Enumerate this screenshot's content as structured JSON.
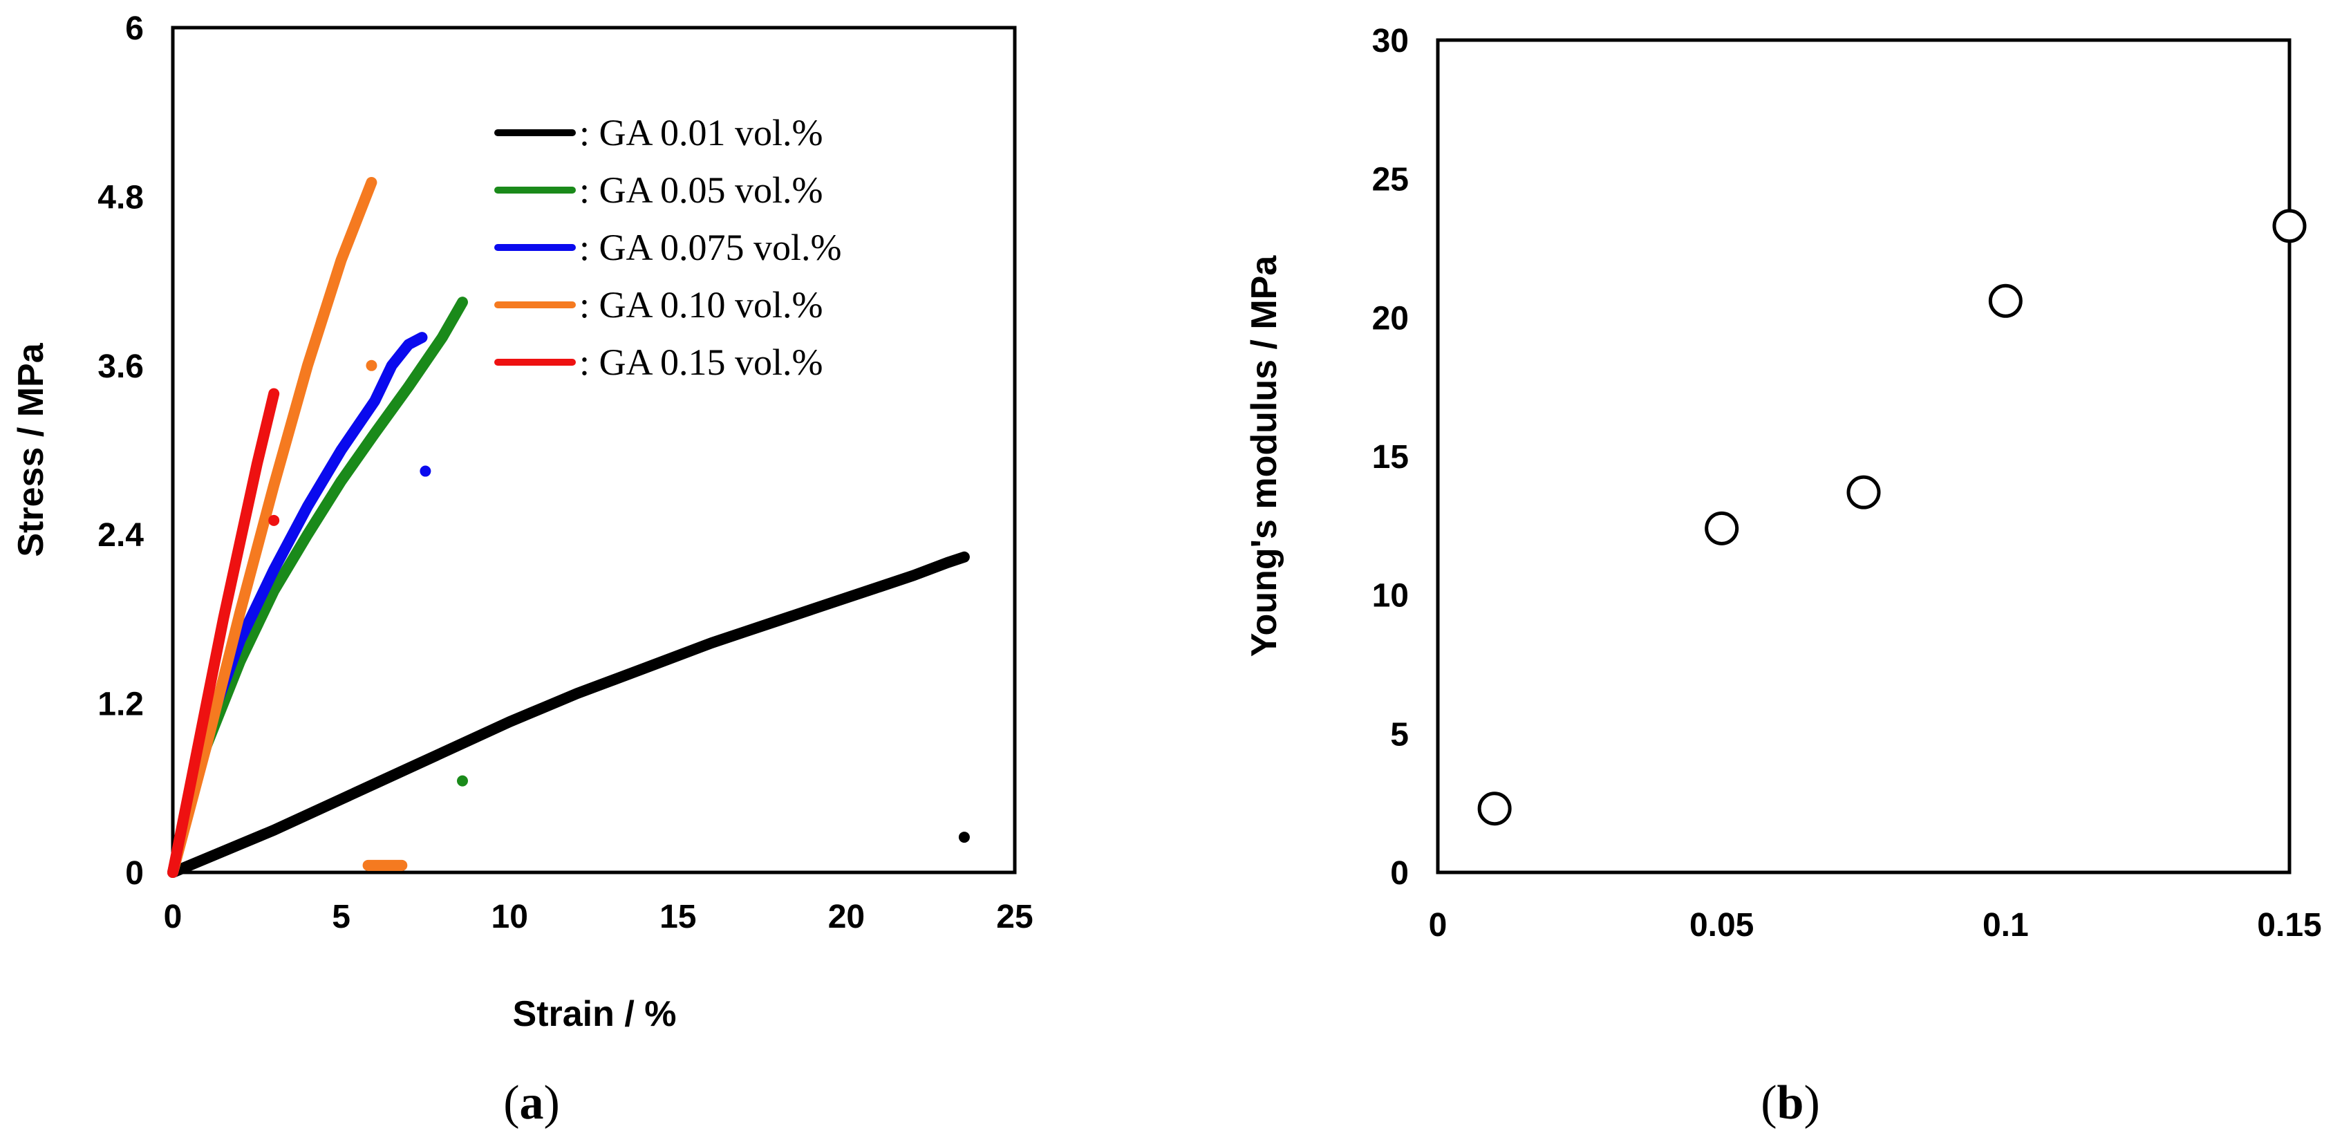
{
  "chart_data": [
    {
      "panel": "(a)",
      "type": "line",
      "xlabel": "Strain / %",
      "ylabel": "Stress / MPa",
      "xlim": [
        0,
        25
      ],
      "ylim": [
        0,
        6
      ],
      "xticks": [
        0,
        5,
        10,
        15,
        20,
        25
      ],
      "yticks": [
        0,
        1.2,
        2.4,
        3.6,
        4.8,
        6
      ],
      "ytick_labels": [
        "0",
        "1.2",
        "2.4",
        "3.6",
        "4.8",
        "6"
      ],
      "grid": false,
      "legend_position": "top-right",
      "series": [
        {
          "name": ": GA 0.01 vol.%",
          "color": "#000000",
          "x": [
            0,
            1,
            2,
            3,
            4,
            5,
            6,
            7,
            8,
            9,
            10,
            11,
            12,
            13,
            14,
            15,
            16,
            17,
            18,
            19,
            20,
            21,
            22,
            23,
            23.5
          ],
          "y": [
            0,
            0.1,
            0.2,
            0.3,
            0.41,
            0.52,
            0.63,
            0.74,
            0.85,
            0.96,
            1.07,
            1.17,
            1.27,
            1.36,
            1.45,
            1.54,
            1.63,
            1.71,
            1.79,
            1.87,
            1.95,
            2.03,
            2.11,
            2.2,
            2.24
          ],
          "break_points": [
            {
              "x": 23.5,
              "y": 0.25
            }
          ]
        },
        {
          "name": ": GA 0.05 vol.%",
          "color": "#1a8a1a",
          "x": [
            0,
            0.5,
            1,
            2,
            3,
            4,
            5,
            6,
            7,
            8,
            8.6
          ],
          "y": [
            0,
            0.5,
            0.9,
            1.5,
            2.0,
            2.4,
            2.78,
            3.12,
            3.45,
            3.8,
            4.05
          ],
          "break_points": [
            {
              "x": 8.6,
              "y": 0.65
            }
          ]
        },
        {
          "name": ": GA 0.075 vol.%",
          "color": "#0a0aee",
          "x": [
            0,
            0.5,
            1,
            2,
            3,
            4,
            5,
            6,
            6.5,
            7,
            7.4
          ],
          "y": [
            0,
            0.55,
            1.0,
            1.65,
            2.15,
            2.6,
            3.0,
            3.35,
            3.6,
            3.75,
            3.8
          ],
          "break_points": [
            {
              "x": 7.5,
              "y": 2.85
            }
          ]
        },
        {
          "name": ": GA 0.10 vol.%",
          "color": "#f57a20",
          "x": [
            0,
            1,
            2,
            3,
            4,
            5,
            5.9
          ],
          "y": [
            0,
            0.9,
            1.85,
            2.75,
            3.6,
            4.35,
            4.9
          ],
          "break_points": [
            {
              "x": 5.9,
              "y": 3.6
            }
          ],
          "baseline_segment": {
            "x": [
              5.8,
              6.8
            ],
            "y": 0.05
          }
        },
        {
          "name": ": GA 0.15 vol.%",
          "color": "#ee1111",
          "x": [
            0,
            0.5,
            1,
            1.5,
            2,
            2.5,
            3.0
          ],
          "y": [
            0,
            0.6,
            1.2,
            1.8,
            2.35,
            2.9,
            3.4
          ],
          "break_points": [
            {
              "x": 3.0,
              "y": 2.5
            }
          ]
        }
      ]
    },
    {
      "panel": "(b)",
      "type": "scatter",
      "xlabel": "",
      "ylabel": "Young's modulus / MPa",
      "xlim": [
        0,
        0.15
      ],
      "ylim": [
        0,
        30
      ],
      "xticks": [
        0,
        0.05,
        0.1,
        0.15
      ],
      "xtick_labels": [
        "0",
        "0.05",
        "0.1",
        "0.15"
      ],
      "yticks": [
        0,
        5,
        10,
        15,
        20,
        25,
        30
      ],
      "ytick_labels": [
        "0",
        "5",
        "10",
        "15",
        "20",
        "25",
        "30"
      ],
      "grid": false,
      "x": [
        0.01,
        0.05,
        0.075,
        0.1,
        0.15
      ],
      "y": [
        2.3,
        12.4,
        13.7,
        20.6,
        23.3
      ]
    }
  ]
}
